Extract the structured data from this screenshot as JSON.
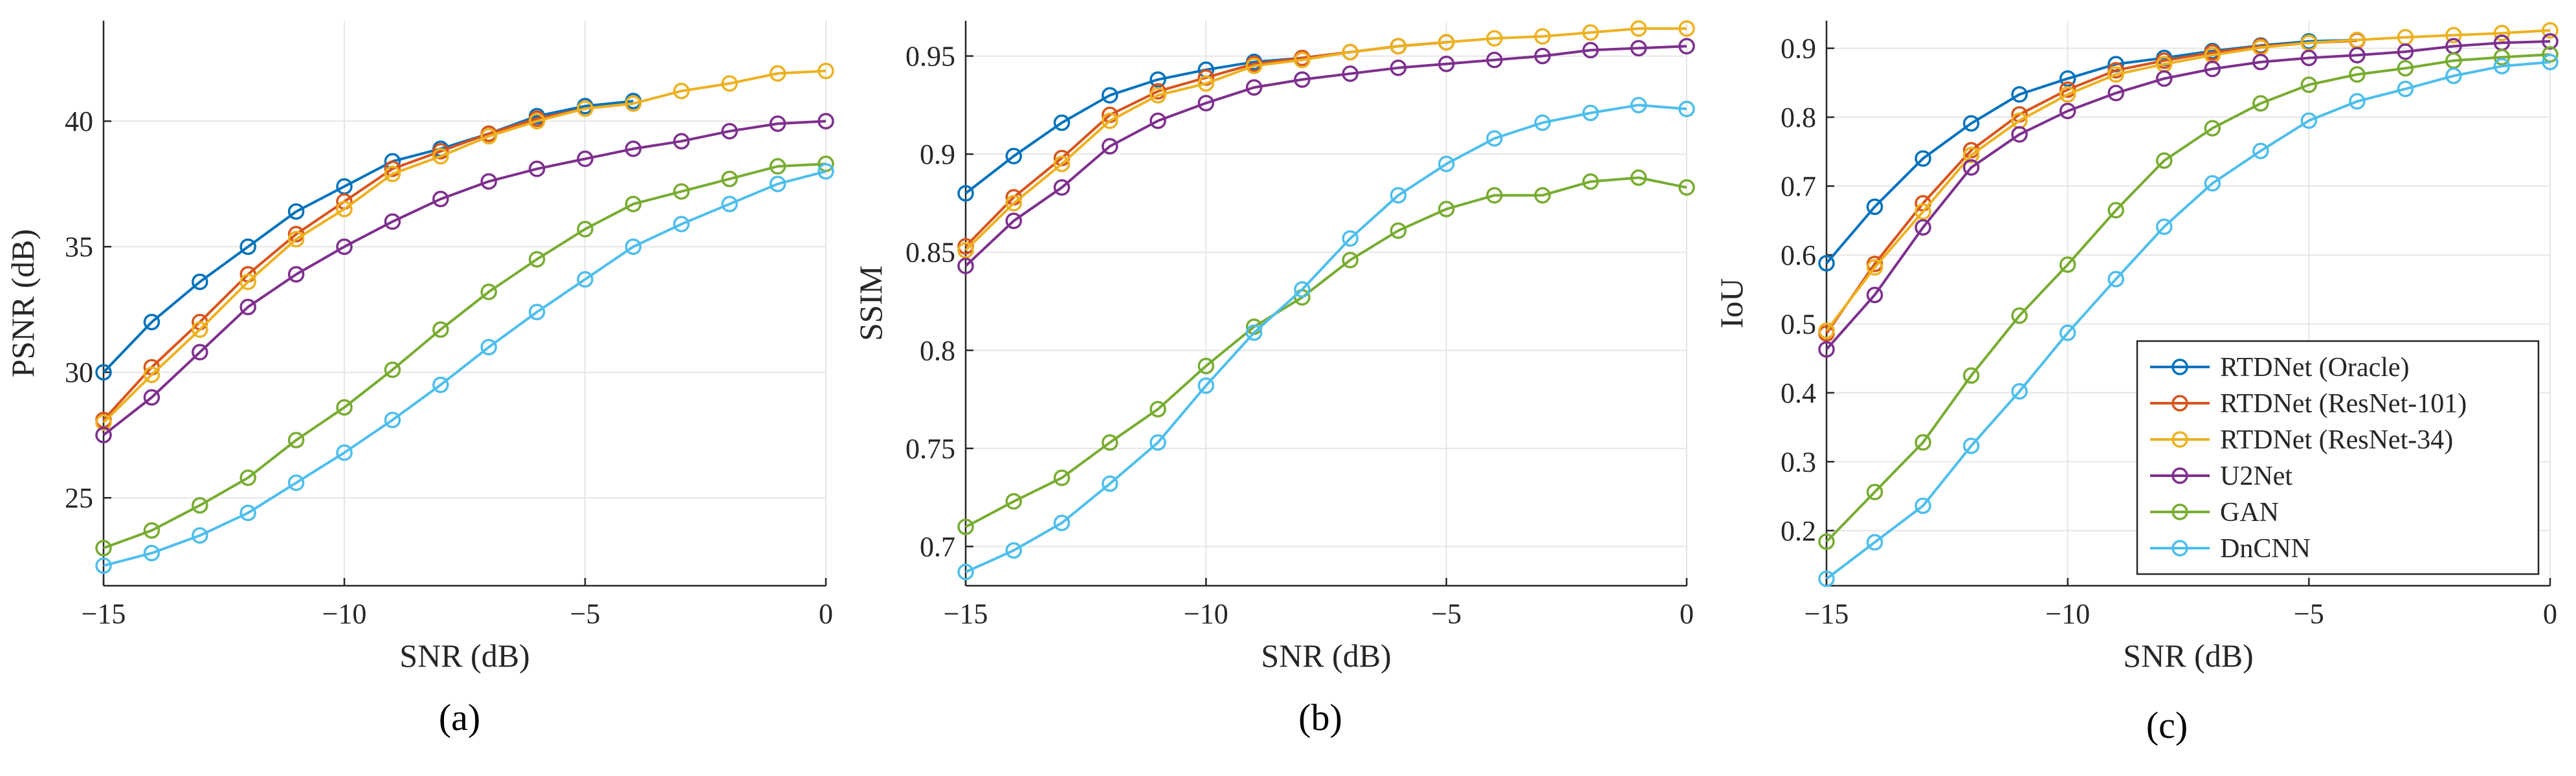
{
  "chart_data": [
    {
      "type": "line",
      "panel_label": "(a)",
      "xlabel": "SNR (dB)",
      "ylabel": "PSNR (dB)",
      "xlim": [
        -15,
        0
      ],
      "ylim": [
        21.5,
        44
      ],
      "xticks": [
        -15,
        -10,
        -5,
        0
      ],
      "xtick_labels": [
        "−15",
        "−10",
        "−5",
        "0"
      ],
      "yticks": [
        25,
        30,
        35,
        40
      ],
      "ytick_labels": [
        "25",
        "30",
        "35",
        "40"
      ],
      "x": [
        -15,
        -14,
        -13,
        -12,
        -11,
        -10,
        -9,
        -8,
        -7,
        -6,
        -5,
        -4,
        -3,
        -2,
        -1,
        0
      ],
      "series": [
        {
          "name": "RTDNet (Oracle)",
          "color": "#0072BD",
          "x": [
            -15,
            -14,
            -13,
            -12,
            -11,
            -10,
            -9,
            -8,
            -7,
            -6,
            -5,
            -4
          ],
          "values": [
            30.0,
            32.0,
            33.6,
            35.0,
            36.4,
            37.4,
            38.4,
            38.9,
            39.5,
            40.2,
            40.6,
            40.8
          ]
        },
        {
          "name": "RTDNet (ResNet-101)",
          "color": "#D95319",
          "x": [
            -15,
            -14,
            -13,
            -12,
            -11,
            -10,
            -9,
            -8,
            -7,
            -6,
            -5,
            -4
          ],
          "values": [
            28.1,
            30.2,
            32.0,
            33.9,
            35.5,
            36.8,
            38.1,
            38.8,
            39.5,
            40.1,
            40.5,
            40.7
          ]
        },
        {
          "name": "RTDNet (ResNet-34)",
          "color": "#EDB120",
          "x": [
            -15,
            -14,
            -13,
            -12,
            -11,
            -10,
            -9,
            -8,
            -7,
            -6,
            -5,
            -4,
            -3,
            -2,
            -1,
            0
          ],
          "values": [
            28.0,
            29.9,
            31.7,
            33.6,
            35.3,
            36.5,
            37.9,
            38.6,
            39.4,
            40.0,
            40.5,
            40.7,
            41.2,
            41.5,
            41.9,
            42.0
          ]
        },
        {
          "name": "U2Net",
          "color": "#7E2F8E",
          "x": [
            -15,
            -14,
            -13,
            -12,
            -11,
            -10,
            -9,
            -8,
            -7,
            -6,
            -5,
            -4,
            -3,
            -2,
            -1,
            0
          ],
          "values": [
            27.5,
            29.0,
            30.8,
            32.6,
            33.9,
            35.0,
            36.0,
            36.9,
            37.6,
            38.1,
            38.5,
            38.9,
            39.2,
            39.6,
            39.9,
            40.0
          ]
        },
        {
          "name": "GAN",
          "color": "#77AC30",
          "x": [
            -15,
            -14,
            -13,
            -12,
            -11,
            -10,
            -9,
            -8,
            -7,
            -6,
            -5,
            -4,
            -3,
            -2,
            -1,
            0
          ],
          "values": [
            23.0,
            23.7,
            24.7,
            25.8,
            27.3,
            28.6,
            30.1,
            31.7,
            33.2,
            34.5,
            35.7,
            36.7,
            37.2,
            37.7,
            38.2,
            38.3
          ]
        },
        {
          "name": "DnCNN",
          "color": "#4DBEEE",
          "x": [
            -15,
            -14,
            -13,
            -12,
            -11,
            -10,
            -9,
            -8,
            -7,
            -6,
            -5,
            -4,
            -3,
            -2,
            -1,
            0
          ],
          "values": [
            22.3,
            22.8,
            23.5,
            24.4,
            25.6,
            26.8,
            28.1,
            29.5,
            31.0,
            32.4,
            33.7,
            35.0,
            35.9,
            36.7,
            37.5,
            38.0
          ]
        }
      ]
    },
    {
      "type": "line",
      "panel_label": "(b)",
      "xlabel": "SNR (dB)",
      "ylabel": "SSIM",
      "xlim": [
        -15,
        0
      ],
      "ylim": [
        0.68,
        0.968
      ],
      "xticks": [
        -15,
        -10,
        -5,
        0
      ],
      "xtick_labels": [
        "−15",
        "−10",
        "−5",
        "0"
      ],
      "yticks": [
        0.7,
        0.75,
        0.8,
        0.85,
        0.9,
        0.95
      ],
      "ytick_labels": [
        "0.7",
        "0.75",
        "0.8",
        "0.85",
        "0.9",
        "0.95"
      ],
      "x": [
        -15,
        -14,
        -13,
        -12,
        -11,
        -10,
        -9,
        -8,
        -7,
        -6,
        -5,
        -4,
        -3,
        -2,
        -1,
        0
      ],
      "series": [
        {
          "name": "RTDNet (Oracle)",
          "color": "#0072BD",
          "x": [
            -15,
            -14,
            -13,
            -12,
            -11,
            -10,
            -9,
            -8,
            -7,
            -6,
            -5
          ],
          "values": [
            0.88,
            0.899,
            0.916,
            0.93,
            0.938,
            0.943,
            0.947,
            0.949,
            0.952,
            0.955,
            0.957
          ]
        },
        {
          "name": "RTDNet (ResNet-101)",
          "color": "#D95319",
          "x": [
            -15,
            -14,
            -13,
            -12,
            -11,
            -10,
            -9,
            -8,
            -7,
            -6,
            -5
          ],
          "values": [
            0.853,
            0.878,
            0.898,
            0.92,
            0.932,
            0.939,
            0.946,
            0.949,
            0.952,
            0.955,
            0.957
          ]
        },
        {
          "name": "RTDNet (ResNet-34)",
          "color": "#EDB120",
          "x": [
            -15,
            -14,
            -13,
            -12,
            -11,
            -10,
            -9,
            -8,
            -7,
            -6,
            -5,
            -4,
            -3,
            -2,
            -1,
            0
          ],
          "values": [
            0.851,
            0.875,
            0.895,
            0.917,
            0.93,
            0.936,
            0.945,
            0.948,
            0.952,
            0.955,
            0.957,
            0.959,
            0.96,
            0.962,
            0.964,
            0.964
          ]
        },
        {
          "name": "U2Net",
          "color": "#7E2F8E",
          "x": [
            -15,
            -14,
            -13,
            -12,
            -11,
            -10,
            -9,
            -8,
            -7,
            -6,
            -5,
            -4,
            -3,
            -2,
            -1,
            0
          ],
          "values": [
            0.843,
            0.866,
            0.883,
            0.904,
            0.917,
            0.926,
            0.934,
            0.938,
            0.941,
            0.944,
            0.946,
            0.948,
            0.95,
            0.953,
            0.954,
            0.955
          ]
        },
        {
          "name": "GAN",
          "color": "#77AC30",
          "x": [
            -15,
            -14,
            -13,
            -12,
            -11,
            -10,
            -9,
            -8,
            -7,
            -6,
            -5,
            -4,
            -3,
            -2,
            -1,
            0
          ],
          "values": [
            0.71,
            0.723,
            0.735,
            0.753,
            0.77,
            0.792,
            0.812,
            0.827,
            0.846,
            0.861,
            0.872,
            0.879,
            0.879,
            0.886,
            0.888,
            0.883
          ]
        },
        {
          "name": "DnCNN",
          "color": "#4DBEEE",
          "x": [
            -15,
            -14,
            -13,
            -12,
            -11,
            -10,
            -9,
            -8,
            -7,
            -6,
            -5,
            -4,
            -3,
            -2,
            -1,
            0
          ],
          "values": [
            0.687,
            0.698,
            0.712,
            0.732,
            0.753,
            0.782,
            0.809,
            0.831,
            0.857,
            0.879,
            0.895,
            0.908,
            0.916,
            0.921,
            0.925,
            0.923
          ]
        }
      ]
    },
    {
      "type": "line",
      "panel_label": "(c)",
      "xlabel": "SNR (dB)",
      "ylabel": "IoU",
      "xlim": [
        -15,
        0
      ],
      "ylim": [
        0.12,
        0.94
      ],
      "xticks": [
        -15,
        -10,
        -5,
        0
      ],
      "xtick_labels": [
        "−15",
        "−10",
        "−5",
        "0"
      ],
      "yticks": [
        0.2,
        0.3,
        0.4,
        0.5,
        0.6,
        0.7,
        0.8,
        0.9
      ],
      "ytick_labels": [
        "0.2",
        "0.3",
        "0.4",
        "0.5",
        "0.6",
        "0.7",
        "0.8",
        "0.9"
      ],
      "legend_position": "bottom-right",
      "x": [
        -15,
        -14,
        -13,
        -12,
        -11,
        -10,
        -9,
        -8,
        -7,
        -6,
        -5,
        -4,
        -3,
        -2,
        -1,
        0
      ],
      "series": [
        {
          "name": "RTDNet (Oracle)",
          "color": "#0072BD",
          "x": [
            -15,
            -14,
            -13,
            -12,
            -11,
            -10,
            -9,
            -8,
            -7,
            -6,
            -5,
            -4
          ],
          "values": [
            0.588,
            0.67,
            0.74,
            0.791,
            0.833,
            0.856,
            0.877,
            0.886,
            0.896,
            0.904,
            0.91,
            0.912
          ]
        },
        {
          "name": "RTDNet (ResNet-101)",
          "color": "#D95319",
          "x": [
            -15,
            -14,
            -13,
            -12,
            -11,
            -10,
            -9,
            -8,
            -7,
            -6,
            -5,
            -4
          ],
          "values": [
            0.486,
            0.587,
            0.675,
            0.752,
            0.804,
            0.84,
            0.868,
            0.882,
            0.894,
            0.903,
            0.908,
            0.911
          ]
        },
        {
          "name": "RTDNet (ResNet-34)",
          "color": "#EDB120",
          "x": [
            -15,
            -14,
            -13,
            -12,
            -11,
            -10,
            -9,
            -8,
            -7,
            -6,
            -5,
            -4,
            -3,
            -2,
            -1,
            0
          ],
          "values": [
            0.49,
            0.582,
            0.663,
            0.745,
            0.795,
            0.833,
            0.862,
            0.877,
            0.89,
            0.901,
            0.908,
            0.912,
            0.916,
            0.919,
            0.922,
            0.926
          ]
        },
        {
          "name": "U2Net",
          "color": "#7E2F8E",
          "x": [
            -15,
            -14,
            -13,
            -12,
            -11,
            -10,
            -9,
            -8,
            -7,
            -6,
            -5,
            -4,
            -3,
            -2,
            -1,
            0
          ],
          "values": [
            0.463,
            0.542,
            0.64,
            0.727,
            0.775,
            0.809,
            0.835,
            0.856,
            0.87,
            0.88,
            0.886,
            0.89,
            0.895,
            0.903,
            0.908,
            0.91
          ]
        },
        {
          "name": "GAN",
          "color": "#77AC30",
          "x": [
            -15,
            -14,
            -13,
            -12,
            -11,
            -10,
            -9,
            -8,
            -7,
            -6,
            -5,
            -4,
            -3,
            -2,
            -1,
            0
          ],
          "values": [
            0.184,
            0.256,
            0.328,
            0.425,
            0.512,
            0.586,
            0.665,
            0.737,
            0.784,
            0.82,
            0.847,
            0.862,
            0.871,
            0.882,
            0.887,
            0.891
          ]
        },
        {
          "name": "DnCNN",
          "color": "#4DBEEE",
          "x": [
            -15,
            -14,
            -13,
            -12,
            -11,
            -10,
            -9,
            -8,
            -7,
            -6,
            -5,
            -4,
            -3,
            -2,
            -1,
            0
          ],
          "values": [
            0.13,
            0.183,
            0.236,
            0.323,
            0.402,
            0.487,
            0.565,
            0.641,
            0.704,
            0.751,
            0.795,
            0.823,
            0.841,
            0.86,
            0.874,
            0.88
          ]
        }
      ]
    }
  ]
}
